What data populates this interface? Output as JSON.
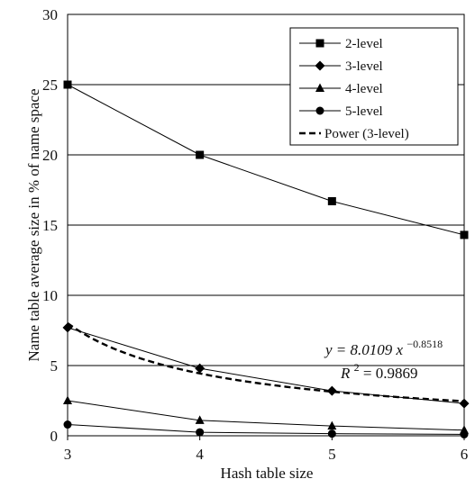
{
  "chart_data": {
    "type": "line",
    "xlabel": "Hash table size",
    "ylabel": "Name table average size in % of name space",
    "xlim": [
      3,
      6
    ],
    "ylim": [
      0,
      30
    ],
    "x_ticks": [
      "3",
      "4",
      "5",
      "6"
    ],
    "y_ticks": [
      "0",
      "5",
      "10",
      "15",
      "20",
      "25",
      "30"
    ],
    "grid": "horizontal",
    "legend_position": "top-right",
    "x": [
      3,
      4,
      5,
      6
    ],
    "series": [
      {
        "name": "2-level",
        "marker": "square",
        "values": [
          25.0,
          20.0,
          16.7,
          14.3
        ]
      },
      {
        "name": "3-level",
        "marker": "diamond",
        "values": [
          7.7,
          4.8,
          3.2,
          2.3
        ]
      },
      {
        "name": "4-level",
        "marker": "triangle",
        "values": [
          2.5,
          1.1,
          0.7,
          0.4
        ]
      },
      {
        "name": "5-level",
        "marker": "circle",
        "values": [
          0.8,
          0.25,
          0.15,
          0.1
        ]
      }
    ],
    "trendline": {
      "name": "Power (3-level)",
      "style": "dashed",
      "coefficient": 8.0109,
      "exponent": -0.8518,
      "x_offset": 2
    },
    "annotations": {
      "equation_prefix": "y = 8.0109 x",
      "equation_exponent": "−0.8518",
      "r2_label": "R",
      "r2_exponent": "2",
      "r2_value": "= 0.9869"
    }
  }
}
